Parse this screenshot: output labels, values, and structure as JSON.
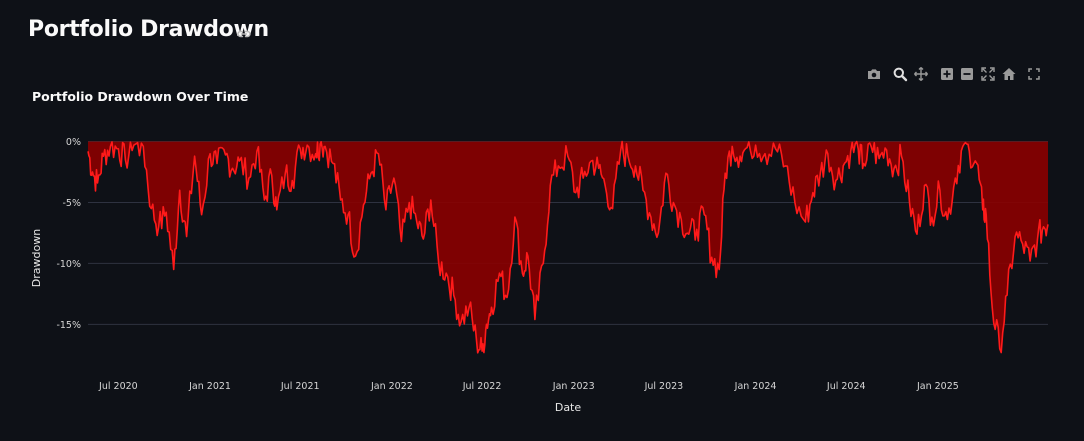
{
  "header": {
    "title": "Portfolio Drawdown"
  },
  "icons": {
    "link": "link-icon",
    "modebar": [
      "camera-icon",
      "zoom-icon",
      "pan-icon",
      "zoom-in-icon",
      "zoom-out-icon",
      "autoscale-icon",
      "home-icon",
      "fullscreen-icon"
    ]
  },
  "colors": {
    "background": "#0e1117",
    "line": "#ff1a1a",
    "fill": "#8b0000",
    "grid": "#2e3240"
  },
  "chart_data": {
    "type": "area",
    "title": "Portfolio Drawdown Over Time",
    "xlabel": "Date",
    "ylabel": "Drawdown",
    "ylim": [
      -18.5,
      0.7
    ],
    "xlim": [
      "2020-05-01",
      "2025-08-10"
    ],
    "yticks": [
      0,
      -5,
      -10,
      -15
    ],
    "ytick_labels": [
      "0%",
      "-5%",
      "-10%",
      "-15%"
    ],
    "xticks": [
      "2020-07-01",
      "2021-01-01",
      "2021-07-01",
      "2022-01-01",
      "2022-07-01",
      "2023-01-01",
      "2023-07-01",
      "2024-01-01",
      "2024-07-01",
      "2025-01-01"
    ],
    "xtick_labels": [
      "Jul 2020",
      "Jan 2021",
      "Jul 2021",
      "Jan 2022",
      "Jul 2022",
      "Jan 2023",
      "Jul 2023",
      "Jan 2024",
      "Jul 2024",
      "Jan 2025"
    ],
    "grid": true,
    "legend": "none",
    "x": [
      "2020-05-01",
      "2020-05-10",
      "2020-05-20",
      "2020-06-01",
      "2020-06-15",
      "2020-07-01",
      "2020-07-15",
      "2020-08-01",
      "2020-08-20",
      "2020-09-05",
      "2020-09-20",
      "2020-10-05",
      "2020-10-20",
      "2020-11-01",
      "2020-11-15",
      "2020-12-01",
      "2020-12-15",
      "2021-01-01",
      "2021-01-15",
      "2021-02-01",
      "2021-02-15",
      "2021-03-01",
      "2021-03-20",
      "2021-04-05",
      "2021-04-20",
      "2021-05-05",
      "2021-05-15",
      "2021-06-01",
      "2021-06-15",
      "2021-07-01",
      "2021-07-15",
      "2021-08-01",
      "2021-08-10",
      "2021-08-20",
      "2021-09-05",
      "2021-09-20",
      "2021-10-05",
      "2021-10-20",
      "2021-11-05",
      "2021-11-20",
      "2021-12-05",
      "2021-12-20",
      "2022-01-05",
      "2022-01-20",
      "2022-02-05",
      "2022-02-20",
      "2022-03-05",
      "2022-03-20",
      "2022-04-05",
      "2022-04-20",
      "2022-05-05",
      "2022-05-20",
      "2022-06-05",
      "2022-06-20",
      "2022-07-01",
      "2022-07-10",
      "2022-07-20",
      "2022-08-05",
      "2022-08-20",
      "2022-09-05",
      "2022-09-20",
      "2022-10-01",
      "2022-10-15",
      "2022-11-01",
      "2022-11-15",
      "2022-12-01",
      "2022-12-20",
      "2023-01-05",
      "2023-01-20",
      "2023-02-05",
      "2023-02-20",
      "2023-03-05",
      "2023-03-20",
      "2023-04-05",
      "2023-04-20",
      "2023-05-05",
      "2023-05-20",
      "2023-06-05",
      "2023-06-20",
      "2023-07-05",
      "2023-07-20",
      "2023-08-05",
      "2023-08-20",
      "2023-09-05",
      "2023-09-20",
      "2023-10-05",
      "2023-10-20",
      "2023-11-01",
      "2023-11-15",
      "2023-12-01",
      "2023-12-15",
      "2024-01-01",
      "2024-01-20",
      "2024-02-10",
      "2024-03-01",
      "2024-03-20",
      "2024-04-10",
      "2024-04-25",
      "2024-05-10",
      "2024-05-25",
      "2024-06-10",
      "2024-06-25",
      "2024-07-10",
      "2024-07-25",
      "2024-08-05",
      "2024-08-20",
      "2024-09-05",
      "2024-09-20",
      "2024-10-05",
      "2024-10-20",
      "2024-11-05",
      "2024-11-20",
      "2024-12-05",
      "2024-12-20",
      "2025-01-05",
      "2025-01-20",
      "2025-02-05",
      "2025-02-20",
      "2025-03-05",
      "2025-03-20",
      "2025-04-01",
      "2025-04-08",
      "2025-04-20",
      "2025-05-05",
      "2025-05-20",
      "2025-06-05",
      "2025-06-20",
      "2025-07-05",
      "2025-07-20",
      "2025-08-01",
      "2025-08-10"
    ],
    "y": [
      -0.8,
      -2.5,
      -3.4,
      -1.2,
      -0.4,
      -0.6,
      -1.5,
      -0.3,
      -0.4,
      -5.5,
      -7.0,
      -5.8,
      -10.5,
      -4.0,
      -7.8,
      -1.2,
      -6.0,
      -1.0,
      -1.8,
      -1.1,
      -2.2,
      -1.6,
      -3.0,
      -0.8,
      -4.8,
      -2.8,
      -5.6,
      -2.6,
      -3.2,
      -0.6,
      -0.3,
      -1.0,
      -0.2,
      -0.4,
      -1.8,
      -4.8,
      -6.0,
      -9.4,
      -5.2,
      -2.6,
      -1.0,
      -5.6,
      -3.0,
      -8.2,
      -5.0,
      -6.6,
      -8.0,
      -4.8,
      -10.0,
      -10.8,
      -12.6,
      -14.8,
      -13.6,
      -16.4,
      -17.2,
      -15.0,
      -13.6,
      -10.8,
      -12.8,
      -6.2,
      -10.8,
      -9.4,
      -14.6,
      -10.0,
      -3.6,
      -2.0,
      -1.2,
      -4.2,
      -3.0,
      -1.6,
      -2.2,
      -3.6,
      -5.5,
      -0.8,
      -1.2,
      -2.0,
      -4.0,
      -6.2,
      -7.5,
      -2.6,
      -5.0,
      -6.4,
      -7.6,
      -7.2,
      -6.0,
      -9.5,
      -10.5,
      -2.6,
      -0.4,
      -1.2,
      -0.5,
      -0.3,
      -1.0,
      -0.6,
      -2.0,
      -5.0,
      -6.6,
      -4.2,
      -2.6,
      -1.0,
      -3.2,
      -2.0,
      -0.8,
      -0.6,
      -1.8,
      -0.4,
      -1.4,
      -0.7,
      -2.2,
      -1.2,
      -5.0,
      -7.6,
      -3.6,
      -6.2,
      -4.0,
      -6.4,
      -3.0,
      -0.4,
      -0.8,
      -1.8,
      -5.6,
      -6.0,
      -13.6,
      -17.0,
      -12.6,
      -7.8,
      -8.4,
      -9.8,
      -8.0,
      -7.0,
      -6.8
    ]
  }
}
